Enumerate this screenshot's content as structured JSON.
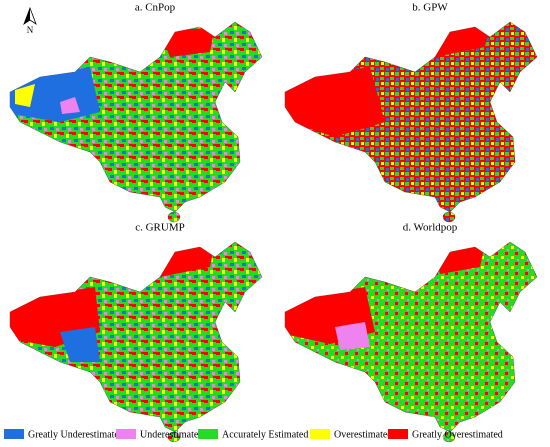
{
  "panels": [
    {
      "title": "a. CnPop"
    },
    {
      "title": "b. GPW"
    },
    {
      "title": "c. GRUMP"
    },
    {
      "title": "d. Worldpop"
    }
  ],
  "north": "N",
  "legend": [
    {
      "label": "Greatly Underestimated",
      "color": "#1f6fe0"
    },
    {
      "label": "Underestimated",
      "color": "#ee82ee"
    },
    {
      "label": "Accurately Estimated",
      "color": "#22dd22"
    },
    {
      "label": "Overestimated",
      "color": "#ffff00"
    },
    {
      "label": "Greatly Overestimated",
      "color": "#ff0000"
    }
  ]
}
